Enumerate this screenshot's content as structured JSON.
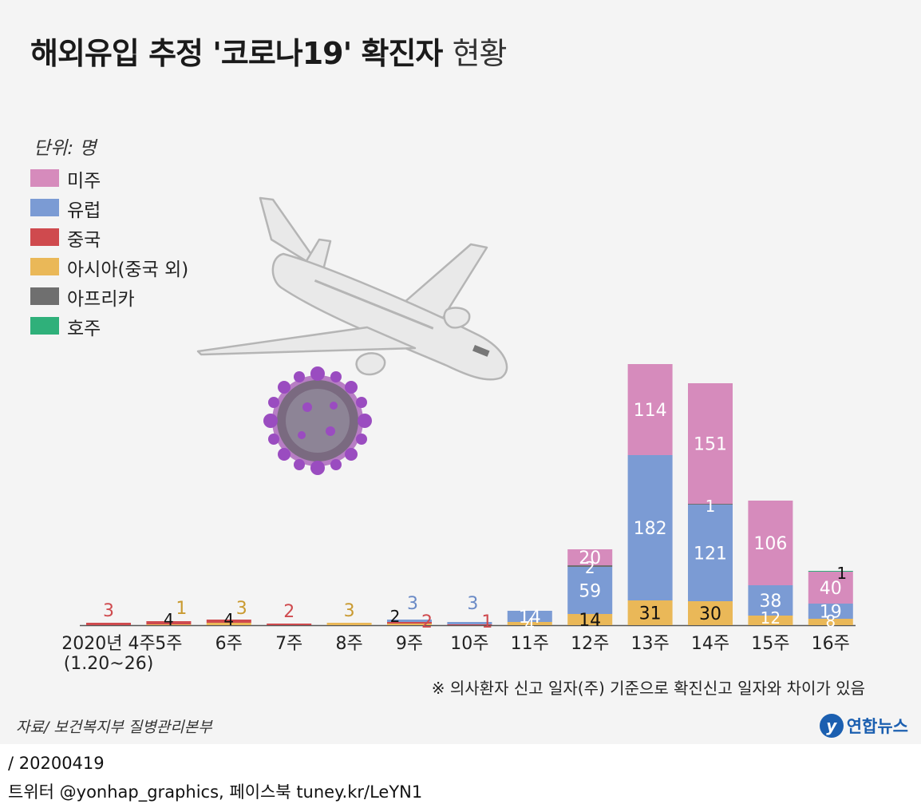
{
  "title": {
    "bold": "해외유입 추정 '코로나19' 확진자",
    "light": "현황"
  },
  "unit_label": "단위: 명",
  "legend": [
    {
      "key": "americas",
      "label": "미주",
      "color": "#d68bbc"
    },
    {
      "key": "europe",
      "label": "유럽",
      "color": "#7b9bd4"
    },
    {
      "key": "china",
      "label": "중국",
      "color": "#cf4a4e"
    },
    {
      "key": "asia",
      "label": "아시아(중국 외)",
      "color": "#eab858"
    },
    {
      "key": "africa",
      "label": "아프리카",
      "color": "#6f6f6f"
    },
    {
      "key": "australia",
      "label": "호주",
      "color": "#2fb07a"
    }
  ],
  "chart_data": {
    "type": "bar",
    "stacked": true,
    "categories": [
      "2020년 4주\n(1.20~26)",
      "5주",
      "6주",
      "7주",
      "8주",
      "9주",
      "10주",
      "11주",
      "12주",
      "13주",
      "14주",
      "15주",
      "16주"
    ],
    "series": [
      {
        "name": "아시아(중국 외)",
        "key": "asia",
        "color": "#eab858",
        "values": [
          0,
          1,
          3,
          0,
          3,
          2,
          0,
          4,
          14,
          31,
          30,
          12,
          8
        ]
      },
      {
        "name": "중국",
        "key": "china",
        "color": "#cf4a4e",
        "values": [
          3,
          4,
          4,
          2,
          0,
          2,
          1,
          0,
          0,
          0,
          0,
          0,
          0
        ]
      },
      {
        "name": "유럽",
        "key": "europe",
        "color": "#7b9bd4",
        "values": [
          0,
          0,
          0,
          0,
          0,
          3,
          3,
          14,
          59,
          182,
          121,
          38,
          19
        ]
      },
      {
        "name": "아프리카",
        "key": "africa",
        "color": "#6f6f6f",
        "values": [
          0,
          0,
          0,
          0,
          0,
          0,
          0,
          0,
          2,
          0,
          1,
          0,
          0
        ]
      },
      {
        "name": "미주",
        "key": "americas",
        "color": "#d68bbc",
        "values": [
          0,
          0,
          0,
          0,
          0,
          0,
          0,
          0,
          20,
          114,
          151,
          106,
          40
        ]
      },
      {
        "name": "호주",
        "key": "australia",
        "color": "#2fb07a",
        "values": [
          0,
          0,
          0,
          0,
          0,
          0,
          0,
          0,
          0,
          0,
          0,
          0,
          1
        ]
      }
    ],
    "ylim": [
      0,
      330
    ],
    "grid": false,
    "legend_position": "left"
  },
  "note": "※ 의사환자 신고 일자(주) 기준으로 확진신고 일자와 차이가 있음",
  "source": "자료/ 보건복지부 질병관리본부",
  "logo": {
    "mark": "y",
    "text": "연합뉴스"
  },
  "footer": {
    "date": "/ 20200419",
    "sns": "트위터 @yonhap_graphics, 페이스북 tuney.kr/LeYN1"
  }
}
